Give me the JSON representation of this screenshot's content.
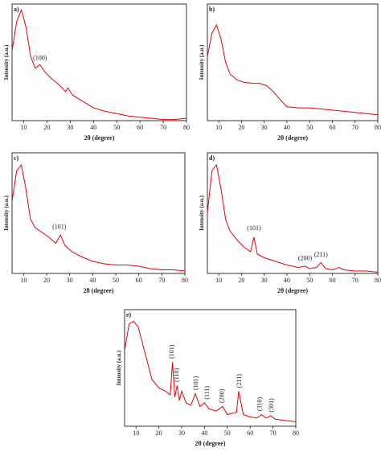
{
  "chart_data": [
    {
      "type": "line",
      "panel": "a)",
      "xlabel": "2θ (degree)",
      "ylabel": "Intensity (a.u.)",
      "xlim": [
        5,
        80
      ],
      "ylim": [
        0,
        100
      ],
      "xticks": [
        10,
        20,
        30,
        40,
        50,
        60,
        70,
        80
      ],
      "color": "#e8000b",
      "x": [
        5,
        7,
        9,
        11,
        13,
        15,
        17,
        19,
        22,
        25,
        28,
        29,
        31,
        35,
        40,
        45,
        50,
        55,
        60,
        65,
        70,
        75,
        80
      ],
      "values": [
        60,
        85,
        95,
        80,
        55,
        45,
        48,
        42,
        36,
        31,
        25,
        28,
        22,
        17,
        11,
        8,
        6,
        4,
        3,
        2,
        1,
        1,
        2
      ],
      "annotations": [
        {
          "text": "(100)",
          "x": 17,
          "y": 52
        }
      ]
    },
    {
      "type": "line",
      "panel": "b)",
      "xlabel": "2θ (degree)",
      "ylabel": "Intensity (a.u.)",
      "xlim": [
        5,
        80
      ],
      "ylim": [
        0,
        100
      ],
      "xticks": [
        10,
        20,
        30,
        40,
        50,
        60,
        70,
        80
      ],
      "color": "#e8000b",
      "x": [
        5,
        7,
        9,
        11,
        13,
        15,
        18,
        21,
        25,
        28,
        31,
        34,
        37,
        40,
        45,
        50,
        55,
        60,
        65,
        70,
        75,
        80
      ],
      "values": [
        55,
        75,
        82,
        70,
        50,
        40,
        35,
        33,
        32,
        32,
        30,
        25,
        18,
        12,
        11,
        11,
        10,
        9,
        8,
        7,
        6,
        5
      ],
      "annotations": []
    },
    {
      "type": "line",
      "panel": "c)",
      "xlabel": "2θ (degree)",
      "ylabel": "Intensity (a.u.)",
      "xlim": [
        5,
        80
      ],
      "ylim": [
        0,
        100
      ],
      "xticks": [
        10,
        20,
        30,
        40,
        50,
        60,
        70,
        80
      ],
      "color": "#e8000b",
      "x": [
        5,
        7,
        9,
        11,
        13,
        15,
        18,
        21,
        24,
        26,
        28,
        31,
        35,
        40,
        45,
        50,
        55,
        60,
        65,
        70,
        75,
        80
      ],
      "values": [
        60,
        85,
        90,
        70,
        45,
        38,
        34,
        30,
        25,
        32,
        23,
        18,
        14,
        10,
        8,
        7,
        7,
        6,
        4,
        3,
        3,
        2
      ],
      "annotations": [
        {
          "text": "(101)",
          "x": 25.5,
          "y": 37
        }
      ]
    },
    {
      "type": "line",
      "panel": "d)",
      "xlabel": "2θ (degree)",
      "ylabel": "Intensity (a.u.)",
      "xlim": [
        5,
        80
      ],
      "ylim": [
        0,
        100
      ],
      "xticks": [
        10,
        20,
        30,
        40,
        50,
        60,
        70,
        80
      ],
      "color": "#e8000b",
      "x": [
        5,
        7,
        9,
        11,
        13,
        15,
        18,
        21,
        24,
        25.5,
        27,
        30,
        35,
        40,
        45,
        48,
        50,
        53,
        55,
        57,
        60,
        63,
        65,
        70,
        75,
        80
      ],
      "values": [
        50,
        85,
        90,
        70,
        45,
        35,
        28,
        22,
        18,
        30,
        16,
        13,
        10,
        7,
        5,
        6,
        4,
        5,
        9,
        4,
        3,
        5,
        3,
        2,
        2,
        1
      ],
      "annotations": [
        {
          "text": "(101)",
          "x": 25.5,
          "y": 36
        },
        {
          "text": "(200)",
          "x": 48,
          "y": 11
        },
        {
          "text": "(211)",
          "x": 55,
          "y": 14
        }
      ]
    },
    {
      "type": "line",
      "panel": "e)",
      "xlabel": "2θ (degree)",
      "ylabel": "Intensity (a.u.)",
      "xlim": [
        5,
        80
      ],
      "ylim": [
        0,
        100
      ],
      "xticks": [
        10,
        20,
        30,
        40,
        50,
        60,
        70,
        80
      ],
      "color": "#e8000b",
      "x": [
        5,
        7,
        9,
        11,
        13,
        15,
        17,
        20,
        23,
        25,
        26,
        27,
        28,
        29,
        30,
        32,
        34,
        36,
        38,
        40,
        42,
        45,
        48,
        50,
        52,
        54,
        55,
        57,
        60,
        63,
        65,
        67,
        69,
        71,
        75,
        80
      ],
      "values": [
        65,
        88,
        90,
        85,
        70,
        55,
        40,
        33,
        30,
        27,
        55,
        25,
        35,
        22,
        30,
        20,
        18,
        28,
        17,
        20,
        15,
        13,
        17,
        10,
        11,
        12,
        30,
        10,
        8,
        7,
        10,
        7,
        9,
        6,
        5,
        4
      ],
      "annotations": [
        {
          "text": "(101)",
          "x": 25.5,
          "y": 58
        },
        {
          "text": "(110)",
          "x": 27.5,
          "y": 38
        },
        {
          "text": "(101)",
          "x": 36,
          "y": 31
        },
        {
          "text": "(111)",
          "x": 41,
          "y": 23
        },
        {
          "text": "(200)",
          "x": 47.5,
          "y": 20
        },
        {
          "text": "(211)",
          "x": 55,
          "y": 33
        },
        {
          "text": "(310)",
          "x": 64,
          "y": 13
        },
        {
          "text": "(301)",
          "x": 69,
          "y": 12
        }
      ]
    }
  ]
}
